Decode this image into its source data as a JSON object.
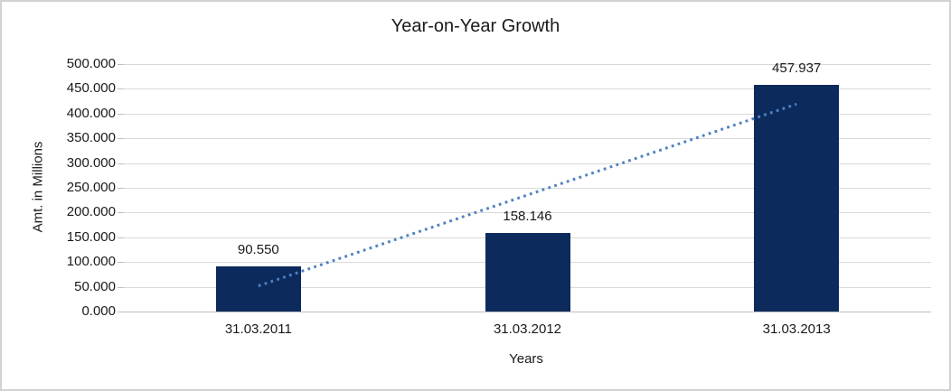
{
  "chart_data": {
    "type": "bar",
    "title": "Year-on-Year Growth",
    "xlabel": "Years",
    "ylabel": "Amt. in Millions",
    "categories": [
      "31.03.2011",
      "31.03.2012",
      "31.03.2013"
    ],
    "values": [
      90.55,
      158.146,
      457.937
    ],
    "data_labels": [
      "90.550",
      "158.146",
      "457.937"
    ],
    "ylim": [
      0,
      500
    ],
    "y_tick_step": 50,
    "y_tick_labels": [
      "0.000",
      "50.000",
      "100.000",
      "150.000",
      "200.000",
      "250.000",
      "300.000",
      "350.000",
      "400.000",
      "450.000",
      "500.000"
    ],
    "grid": true,
    "legend": "none",
    "bar_color": "#0d2a5c",
    "trendline": {
      "type": "linear",
      "style": "dotted",
      "color": "#4e81c2",
      "start_value": 51.8,
      "end_value": 419.2
    },
    "colors": {
      "gridline": "#d9d9d9",
      "axis_line": "#bfbfbf",
      "tick_mark": "#bfbfbf",
      "text": "#1a1a1a",
      "frame_border": "#d2d2d2",
      "background": "#ffffff"
    }
  }
}
